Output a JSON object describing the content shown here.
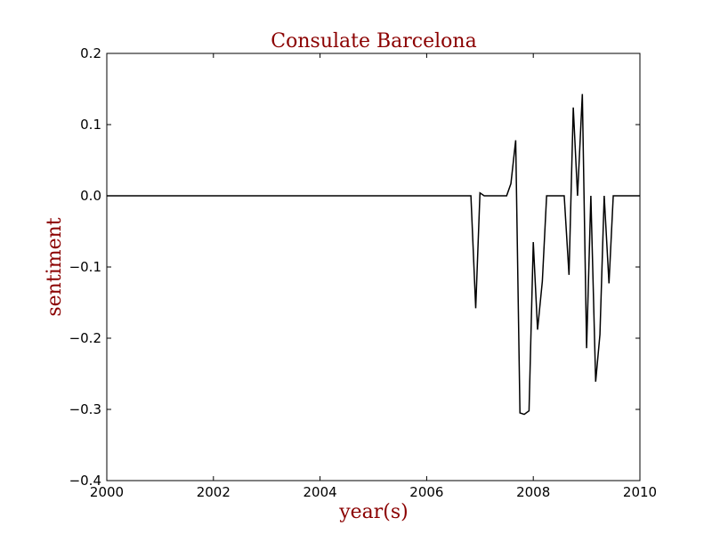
{
  "chart_data": {
    "type": "line",
    "title": "Consulate Barcelona",
    "xlabel": "year(s)",
    "ylabel": "sentiment",
    "xlim": [
      2000,
      2010
    ],
    "ylim": [
      -0.4,
      0.2
    ],
    "xticks": [
      2000,
      2002,
      2004,
      2006,
      2008,
      2010
    ],
    "xtick_labels": [
      "2000",
      "2002",
      "2004",
      "2006",
      "2008",
      "2010"
    ],
    "yticks": [
      -0.4,
      -0.3,
      -0.2,
      -0.1,
      0.0,
      0.1,
      0.2
    ],
    "ytick_labels": [
      "−0.4",
      "−0.3",
      "−0.2",
      "−0.1",
      "0.0",
      "0.1",
      "0.2"
    ],
    "grid": false,
    "colors": {
      "line": "#000000",
      "label": "#8b0000",
      "axes": "#000000"
    },
    "series": [
      {
        "x": [
          2000.0,
          2006.83,
          2006.92,
          2007.0,
          2007.08,
          2007.17,
          2007.25,
          2007.33,
          2007.42,
          2007.5,
          2007.58,
          2007.67,
          2007.75,
          2007.83,
          2007.92,
          2008.0,
          2008.08,
          2008.17,
          2008.25,
          2008.33,
          2008.42,
          2008.5,
          2008.58,
          2008.67,
          2008.75,
          2008.83,
          2008.92,
          2009.0,
          2009.08,
          2009.17,
          2009.25,
          2009.33,
          2009.42,
          2009.5,
          2009.58,
          2009.67,
          2009.75,
          2009.83,
          2009.92,
          2010.0
        ],
        "y": [
          0.0,
          0.0,
          -0.158,
          0.004,
          0.0,
          0.0,
          0.0,
          0.0,
          0.0,
          0.0,
          0.017,
          0.078,
          -0.305,
          -0.307,
          -0.302,
          -0.065,
          -0.188,
          -0.12,
          0.0,
          0.0,
          0.0,
          0.0,
          0.0,
          -0.111,
          0.124,
          0.0,
          0.143,
          -0.214,
          0.0,
          -0.261,
          -0.195,
          0.0,
          -0.123,
          0.0,
          0.0,
          0.0,
          0.0,
          0.0,
          0.0,
          0.0
        ]
      }
    ]
  }
}
